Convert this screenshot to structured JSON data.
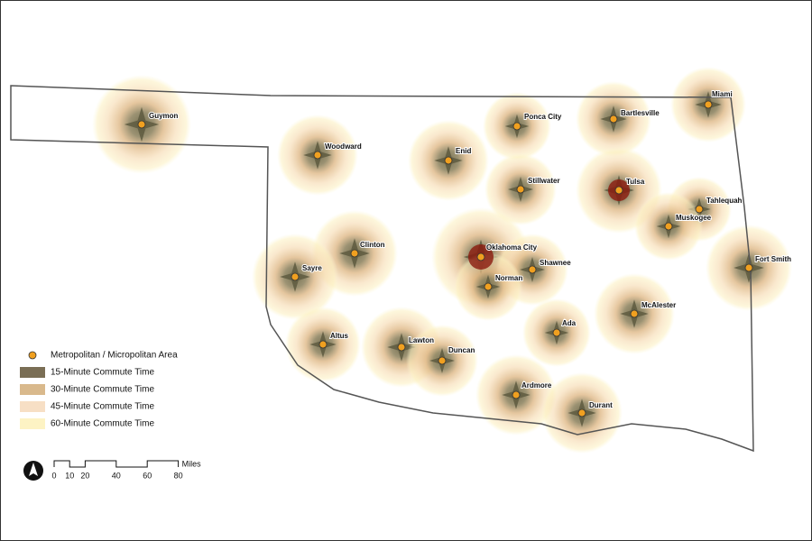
{
  "legend": {
    "items": [
      "Metropolitan / Micropolitan Area",
      "15-Minute Commute Time",
      "30-Minute Commute Time",
      "45-Minute Commute Time",
      "60-Minute Commute Time"
    ]
  },
  "cities": [
    "Guymon",
    "Woodward",
    "Enid",
    "Ponca City",
    "Bartlesville",
    "Miami",
    "Stillwater",
    "Tulsa",
    "Tahlequah",
    "Muskogee",
    "Clinton",
    "Sayre",
    "Oklahoma City",
    "Shawnee",
    "Norman",
    "Fort Smith",
    "McAlester",
    "Ada",
    "Altus",
    "Lawton",
    "Duncan",
    "Ardmore",
    "Durant"
  ],
  "scale_bar": {
    "ticks": [
      0,
      10,
      20,
      40,
      60,
      80
    ],
    "unit": "Miles"
  }
}
